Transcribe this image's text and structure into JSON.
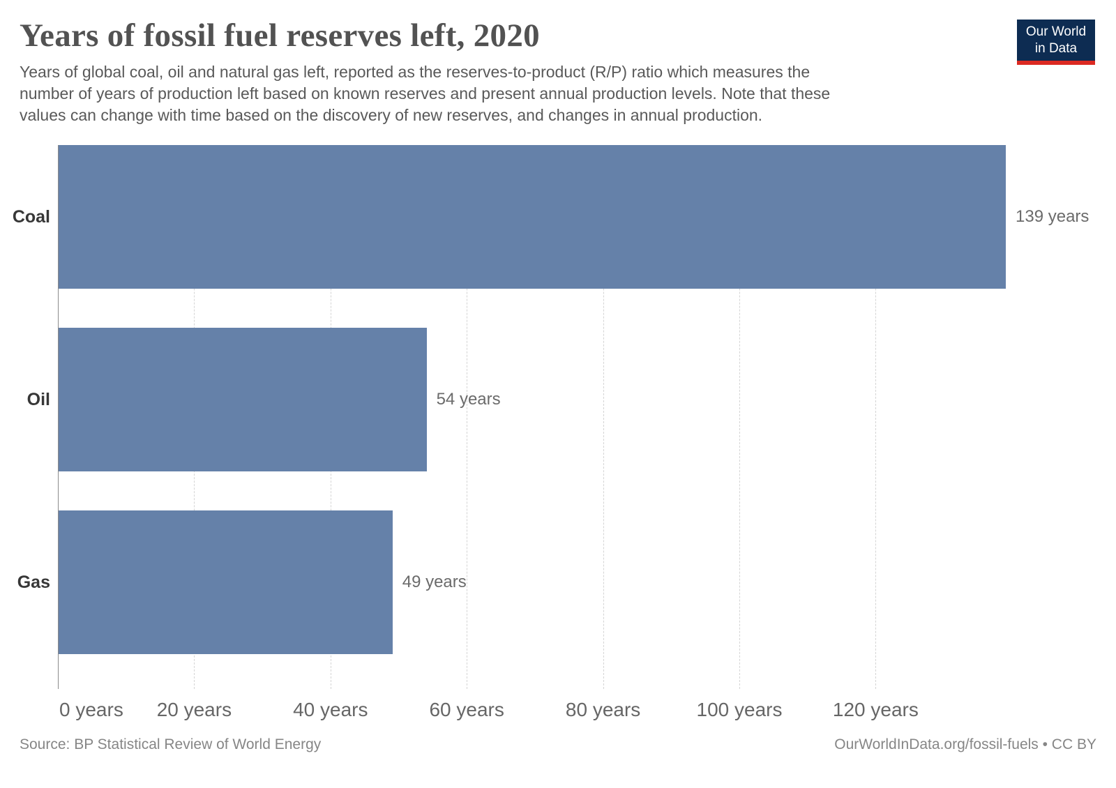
{
  "header": {
    "title": "Years of fossil fuel reserves left, 2020",
    "subtitle_lines": [
      "Years of global coal, oil and natural gas left, reported as the reserves-to-product (R/P) ratio which measures the",
      "number of years of production left based on known reserves and present annual production levels. Note that these",
      "values can change with time based on the discovery of new reserves, and changes in annual production."
    ],
    "logo": {
      "line1": "Our World",
      "line2": "in Data"
    }
  },
  "chart_data": {
    "type": "bar",
    "orientation": "horizontal",
    "title": "Years of fossil fuel reserves left, 2020",
    "categories": [
      "Coal",
      "Oil",
      "Gas"
    ],
    "values": [
      139,
      54,
      49
    ],
    "value_labels": [
      "139 years",
      "54 years",
      "49 years"
    ],
    "unit": "years",
    "x_axis": {
      "range": [
        0,
        139
      ],
      "ticks": [
        0,
        20,
        40,
        60,
        80,
        100,
        120
      ],
      "tick_labels": [
        "0 years",
        "20 years",
        "40 years",
        "60 years",
        "80 years",
        "100 years",
        "120 years"
      ]
    },
    "grid": "vertical-dashed",
    "legend": "none",
    "bar_color": "#6581a9"
  },
  "footer": {
    "source": "Source: BP Statistical Review of World Energy",
    "link": "OurWorldInData.org/fossil-fuels • CC BY"
  },
  "colors": {
    "bar": "#6581a9",
    "logo_navy": "#0d2c52",
    "logo_red": "#dc2a22",
    "gridline": "#d4d4d4",
    "axis_line": "#8a8a8a"
  }
}
